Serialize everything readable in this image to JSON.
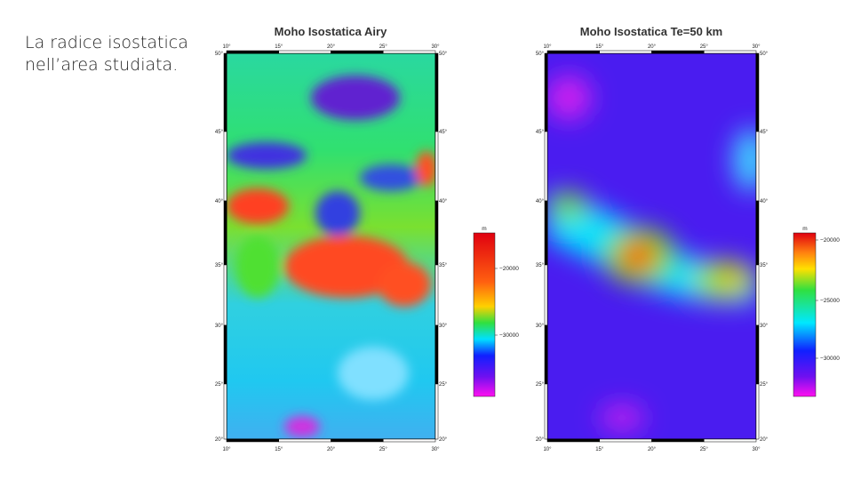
{
  "text": {
    "lines": [
      "La radice isostatica",
      "nell’area studiata."
    ]
  },
  "maps": [
    {
      "title": "Moho Isostatica Airy",
      "lon_labels": [
        "10°",
        "15°",
        "20°",
        "25°",
        "30°"
      ],
      "lat_labels": [
        "50°",
        "45°",
        "40°",
        "35°",
        "30°",
        "25°",
        "20°"
      ],
      "colorbar": {
        "unit": "m",
        "labels": [
          "−20000",
          "−30000"
        ]
      }
    },
    {
      "title": "Moho Isostatica Te=50 km",
      "lon_labels": [
        "10°",
        "15°",
        "20°",
        "25°",
        "30°"
      ],
      "lat_labels": [
        "50°",
        "45°",
        "40°",
        "35°",
        "30°",
        "25°",
        "20°"
      ],
      "colorbar": {
        "unit": "m",
        "labels": [
          "−20000",
          "−25000",
          "−30000"
        ]
      }
    }
  ]
}
